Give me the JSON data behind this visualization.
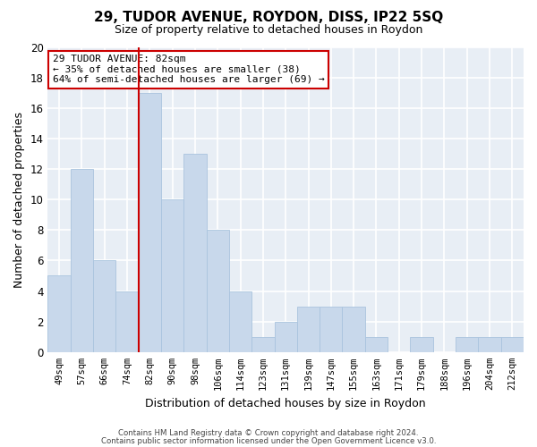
{
  "title1": "29, TUDOR AVENUE, ROYDON, DISS, IP22 5SQ",
  "title2": "Size of property relative to detached houses in Roydon",
  "xlabel": "Distribution of detached houses by size in Roydon",
  "ylabel": "Number of detached properties",
  "categories": [
    "49sqm",
    "57sqm",
    "66sqm",
    "74sqm",
    "82sqm",
    "90sqm",
    "98sqm",
    "106sqm",
    "114sqm",
    "123sqm",
    "131sqm",
    "139sqm",
    "147sqm",
    "155sqm",
    "163sqm",
    "171sqm",
    "179sqm",
    "188sqm",
    "196sqm",
    "204sqm",
    "212sqm"
  ],
  "values": [
    5,
    12,
    6,
    4,
    17,
    10,
    13,
    8,
    4,
    1,
    2,
    3,
    3,
    3,
    1,
    0,
    1,
    0,
    1,
    1,
    1
  ],
  "bar_color": "#c8d8eb",
  "bar_edge_color": "#aac4de",
  "red_line_index": 4,
  "red_line_color": "#cc0000",
  "ylim": [
    0,
    20
  ],
  "yticks": [
    0,
    2,
    4,
    6,
    8,
    10,
    12,
    14,
    16,
    18,
    20
  ],
  "annotation_title": "29 TUDOR AVENUE: 82sqm",
  "annotation_line1": "← 35% of detached houses are smaller (38)",
  "annotation_line2": "64% of semi-detached houses are larger (69) →",
  "annotation_box_color": "#ffffff",
  "annotation_box_edge": "#cc0000",
  "footer1": "Contains HM Land Registry data © Crown copyright and database right 2024.",
  "footer2": "Contains public sector information licensed under the Open Government Licence v3.0.",
  "bg_color": "#ffffff",
  "plot_bg_color": "#e8eef5",
  "grid_color": "#ffffff",
  "title1_fontsize": 11,
  "title2_fontsize": 9
}
